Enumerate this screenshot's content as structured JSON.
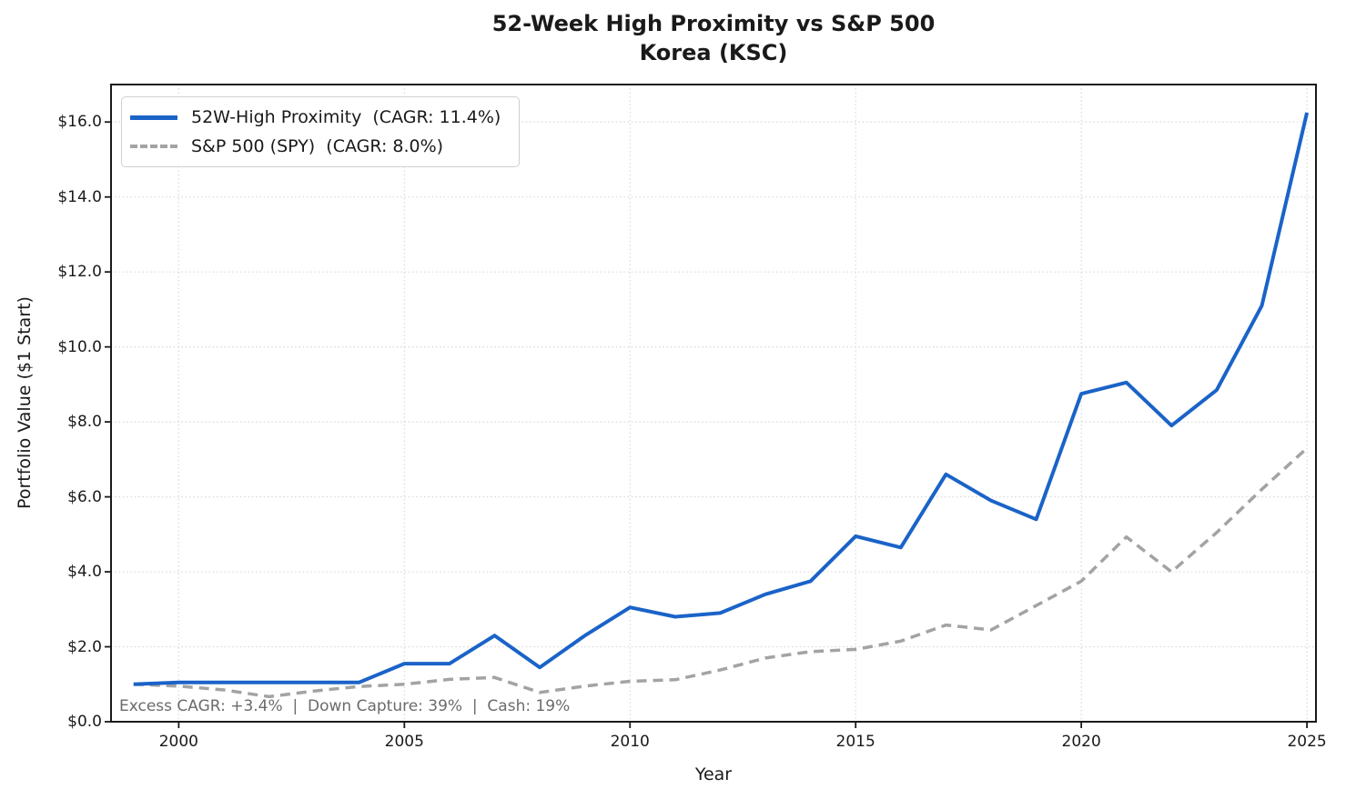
{
  "title": "52-Week High Proximity vs S&P 500",
  "subtitle": "Korea (KSC)",
  "legend": {
    "items": [
      {
        "label": "52W-High Proximity  (CAGR: 11.4%)",
        "color": "#1a63c8",
        "style": "solid"
      },
      {
        "label": "S&P 500 (SPY)  (CAGR: 8.0%)",
        "color": "#a3a3a3",
        "style": "dashed"
      }
    ]
  },
  "annotation": "Excess CAGR: +3.4%  |  Down Capture: 39%  |  Cash: 19%",
  "axes": {
    "x": {
      "label": "Year",
      "ticks": [
        "2000",
        "2005",
        "2010",
        "2015",
        "2020",
        "2025"
      ],
      "tick_years": [
        2000,
        2005,
        2010,
        2015,
        2020,
        2025
      ]
    },
    "y": {
      "label": "Portfolio Value ($1 Start)",
      "ticks": [
        "$0.0",
        "$2.0",
        "$4.0",
        "$6.0",
        "$8.0",
        "$10.0",
        "$12.0",
        "$14.0",
        "$16.0"
      ],
      "tick_values": [
        0,
        2,
        4,
        6,
        8,
        10,
        12,
        14,
        16
      ]
    }
  },
  "chart_data": {
    "type": "line",
    "title": "52-Week High Proximity vs S&P 500\nKorea (KSC)",
    "xlabel": "Year",
    "ylabel": "Portfolio Value ($1 Start)",
    "xlim": [
      1998.5,
      2025.2
    ],
    "ylim": [
      0,
      17
    ],
    "grid": true,
    "legend_position": "upper left",
    "x": [
      1999,
      2000,
      2001,
      2002,
      2003,
      2004,
      2005,
      2006,
      2007,
      2008,
      2009,
      2010,
      2011,
      2012,
      2013,
      2014,
      2015,
      2016,
      2017,
      2018,
      2019,
      2020,
      2021,
      2022,
      2023,
      2024,
      2025
    ],
    "series": [
      {
        "name": "52W-High Proximity",
        "cagr": "11.4%",
        "color": "#1a63c8",
        "style": "solid",
        "width": 4,
        "values": [
          1.0,
          1.05,
          1.05,
          1.05,
          1.05,
          1.05,
          1.55,
          1.55,
          2.3,
          1.45,
          2.3,
          3.05,
          2.8,
          2.9,
          3.4,
          3.75,
          4.95,
          4.65,
          6.6,
          5.9,
          5.4,
          8.75,
          9.05,
          7.9,
          8.85,
          11.1,
          16.25
        ]
      },
      {
        "name": "S&P 500 (SPY)",
        "cagr": "8.0%",
        "color": "#a3a3a3",
        "style": "dashed",
        "width": 3.5,
        "values": [
          1.0,
          0.95,
          0.85,
          0.67,
          0.82,
          0.94,
          1.0,
          1.13,
          1.18,
          0.78,
          0.95,
          1.08,
          1.12,
          1.38,
          1.7,
          1.87,
          1.93,
          2.15,
          2.58,
          2.45,
          3.1,
          3.75,
          4.93,
          4.0,
          5.05,
          6.2,
          7.3
        ]
      }
    ]
  }
}
